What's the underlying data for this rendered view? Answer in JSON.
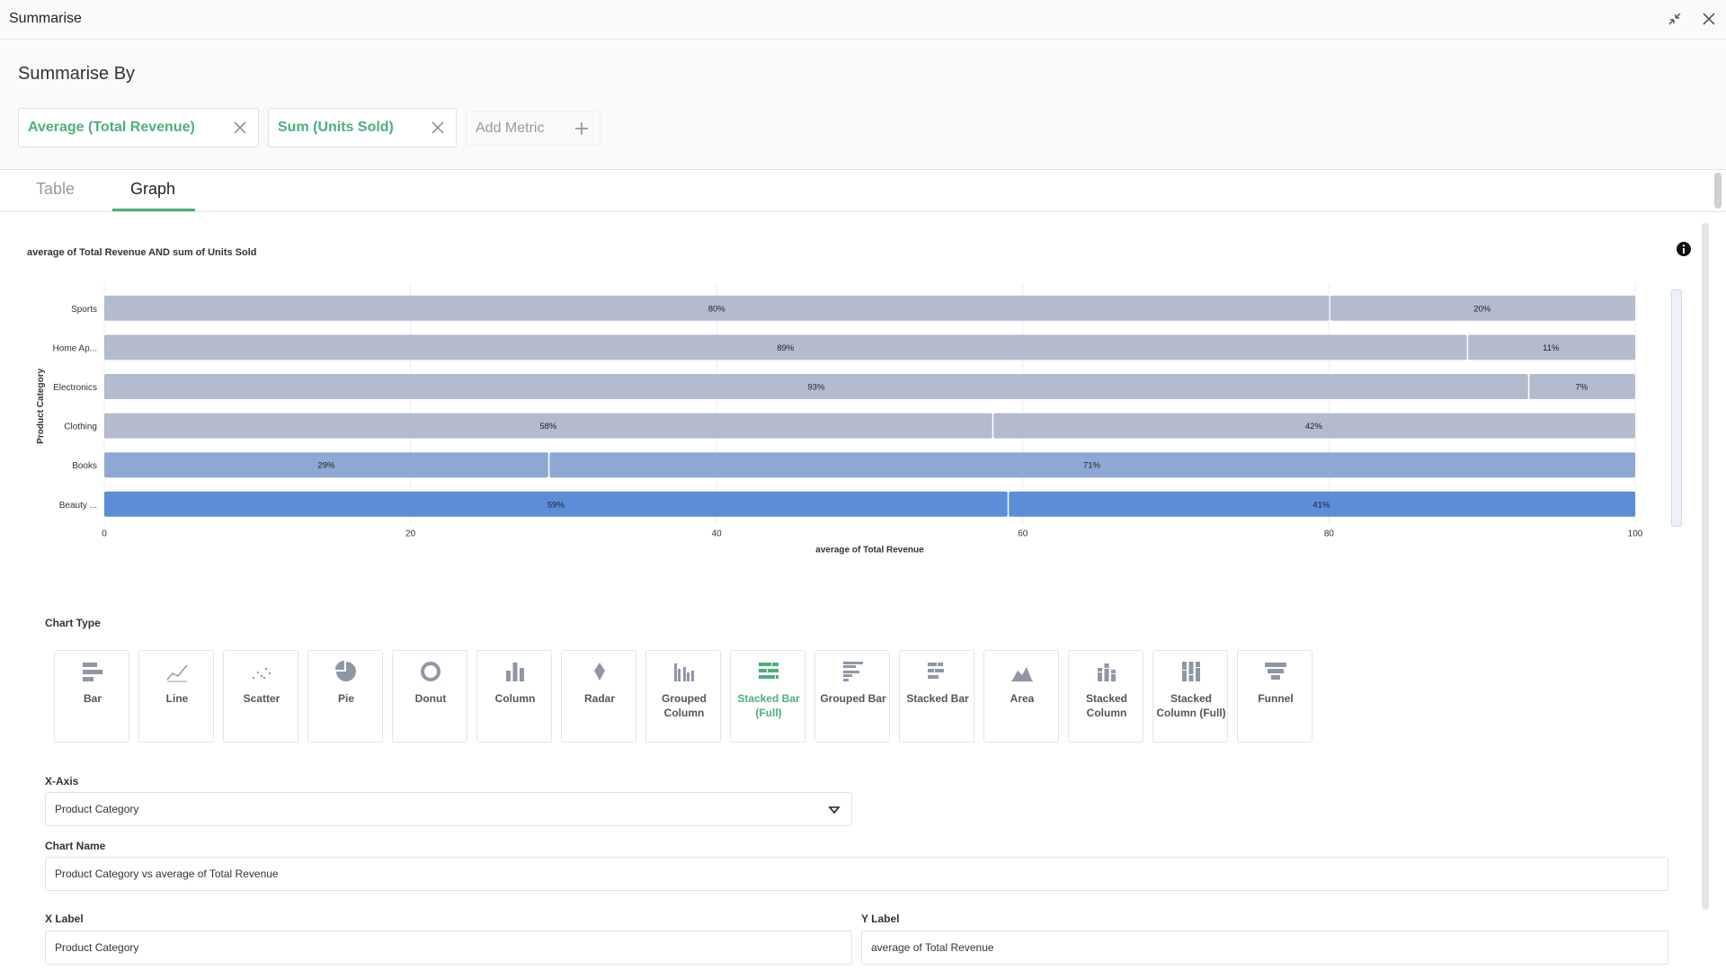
{
  "window": {
    "title": "Summarise"
  },
  "summarise": {
    "heading": "Summarise By",
    "metrics": [
      {
        "label": "Average (Total Revenue)"
      },
      {
        "label": "Sum (Units Sold)"
      }
    ],
    "add_metric_label": "Add Metric"
  },
  "tabs": [
    {
      "label": "Table",
      "active": false
    },
    {
      "label": "Graph",
      "active": true
    }
  ],
  "chart_data": {
    "type": "bar",
    "stacked": "full",
    "orientation": "horizontal",
    "title": "average of Total Revenue AND sum of Units Sold",
    "xlabel": "average of Total Revenue",
    "ylabel": "Product Category",
    "xlim": [
      0,
      100
    ],
    "xticks": [
      "0",
      "20",
      "40",
      "60",
      "80",
      "100"
    ],
    "categories": [
      "Sports",
      "Home Ap...",
      "Electronics",
      "Clothing",
      "Books",
      "Beauty ..."
    ],
    "series": [
      {
        "values": [
          80,
          89,
          93,
          58,
          29,
          59
        ],
        "labels": [
          "80%",
          "89%",
          "93%",
          "58%",
          "29%",
          "59%"
        ]
      },
      {
        "values": [
          20,
          11,
          7,
          42,
          71,
          41
        ],
        "labels": [
          "20%",
          "11%",
          "7%",
          "42%",
          "71%",
          "41%"
        ]
      }
    ],
    "colors": [
      "#b2bccd",
      "#b2bccd",
      "#b2bccd",
      "#b2bccd",
      "#8ea8d6",
      "#5b8dd9"
    ]
  },
  "chart_types": {
    "label": "Chart Type",
    "items": [
      {
        "name": "Bar",
        "icon": "bar-chart-icon"
      },
      {
        "name": "Line",
        "icon": "line-chart-icon"
      },
      {
        "name": "Scatter",
        "icon": "scatter-chart-icon"
      },
      {
        "name": "Pie",
        "icon": "pie-chart-icon"
      },
      {
        "name": "Donut",
        "icon": "donut-chart-icon"
      },
      {
        "name": "Column",
        "icon": "column-chart-icon"
      },
      {
        "name": "Radar",
        "icon": "radar-chart-icon"
      },
      {
        "name": "Grouped Column",
        "icon": "grouped-column-icon"
      },
      {
        "name": "Stacked Bar (Full)",
        "icon": "stacked-bar-full-icon",
        "selected": true
      },
      {
        "name": "Grouped Bar",
        "icon": "grouped-bar-icon"
      },
      {
        "name": "Stacked Bar",
        "icon": "stacked-bar-icon"
      },
      {
        "name": "Area",
        "icon": "area-chart-icon"
      },
      {
        "name": "Stacked Column",
        "icon": "stacked-column-icon"
      },
      {
        "name": "Stacked Column (Full)",
        "icon": "stacked-column-full-icon"
      },
      {
        "name": "Funnel",
        "icon": "funnel-chart-icon"
      }
    ]
  },
  "form": {
    "x_axis": {
      "label": "X-Axis",
      "value": "Product Category"
    },
    "chart_name": {
      "label": "Chart Name",
      "value": "Product Category vs average of Total Revenue"
    },
    "x_label": {
      "label": "X Label",
      "value": "Product Category"
    },
    "y_label": {
      "label": "Y Label",
      "value": "average of Total Revenue"
    }
  },
  "colors": {
    "accent": "#4caf7d",
    "icon_gray": "#8f97a5"
  }
}
